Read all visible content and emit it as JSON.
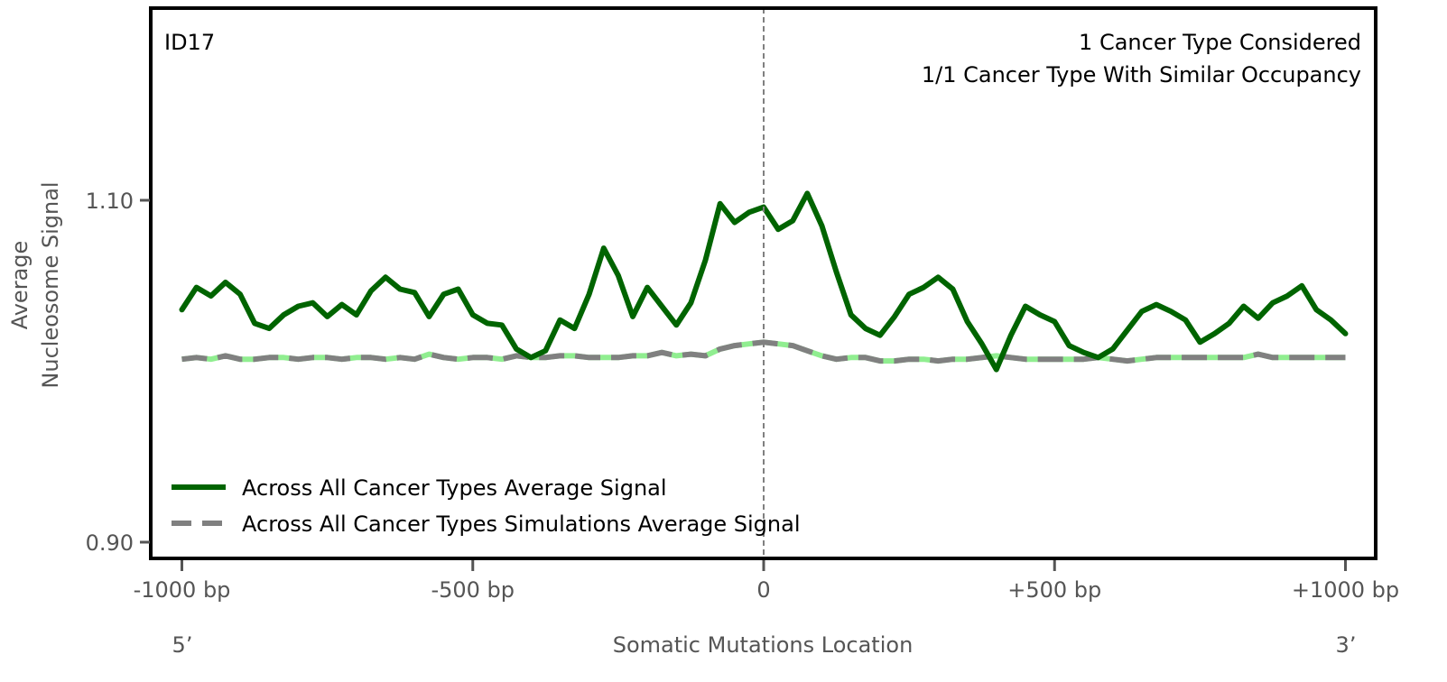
{
  "chart_data": {
    "type": "line",
    "title": "",
    "annotations": {
      "top_left": "ID17",
      "top_right": [
        "1 Cancer Type Considered",
        "1/1 Cancer Type With Similar Occupancy"
      ]
    },
    "xlabel": "Somatic Mutations Location",
    "ylabel_lines": [
      "Average",
      "Nucleosome Signal"
    ],
    "xlim": [
      -1050,
      1050
    ],
    "ylim": [
      0.89,
      1.21
    ],
    "xticks": [
      -1000,
      -500,
      0,
      500,
      1000
    ],
    "xtick_labels": [
      "-1000 bp",
      "-500 bp",
      "0",
      "+500 bp",
      "+1000 bp"
    ],
    "yticks": [
      0.9,
      1.1
    ],
    "ytick_labels": [
      "0.90",
      "1.10"
    ],
    "strand_labels": {
      "left": "5’",
      "right": "3’"
    },
    "center_line_x": 0,
    "grid": false,
    "legend_position": "lower-left",
    "x": [
      -1000,
      -975,
      -950,
      -925,
      -900,
      -875,
      -850,
      -825,
      -800,
      -775,
      -750,
      -725,
      -700,
      -675,
      -650,
      -625,
      -600,
      -575,
      -550,
      -525,
      -500,
      -475,
      -450,
      -425,
      -400,
      -375,
      -350,
      -325,
      -300,
      -275,
      -250,
      -225,
      -200,
      -175,
      -150,
      -125,
      -100,
      -75,
      -50,
      -25,
      0,
      25,
      50,
      75,
      100,
      125,
      150,
      175,
      200,
      225,
      250,
      275,
      300,
      325,
      350,
      375,
      400,
      425,
      450,
      475,
      500,
      525,
      550,
      575,
      600,
      625,
      650,
      675,
      700,
      725,
      750,
      775,
      800,
      825,
      850,
      875,
      900,
      925,
      950,
      975,
      1000
    ],
    "series": [
      {
        "name": "Across All Cancer Types Average Signal",
        "color": "#006400",
        "style": "solid",
        "values": [
          1.036,
          1.049,
          1.044,
          1.052,
          1.045,
          1.028,
          1.025,
          1.033,
          1.038,
          1.04,
          1.032,
          1.039,
          1.033,
          1.047,
          1.055,
          1.048,
          1.046,
          1.032,
          1.045,
          1.048,
          1.033,
          1.028,
          1.027,
          1.013,
          1.008,
          1.012,
          1.03,
          1.025,
          1.045,
          1.072,
          1.056,
          1.032,
          1.049,
          1.038,
          1.027,
          1.04,
          1.065,
          1.098,
          1.087,
          1.093,
          1.096,
          1.083,
          1.088,
          1.104,
          1.085,
          1.058,
          1.033,
          1.025,
          1.021,
          1.032,
          1.045,
          1.049,
          1.055,
          1.048,
          1.029,
          1.016,
          1.001,
          1.021,
          1.038,
          1.033,
          1.029,
          1.015,
          1.011,
          1.008,
          1.013,
          1.024,
          1.035,
          1.039,
          1.035,
          1.03,
          1.017,
          1.022,
          1.028,
          1.038,
          1.031,
          1.04,
          1.044,
          1.05,
          1.036,
          1.03,
          1.022
        ]
      },
      {
        "name": "Across All Cancer Types Simulations Average Signal",
        "color": "#808080",
        "underlay_color": "#90ee90",
        "style": "dashed",
        "values": [
          1.007,
          1.008,
          1.007,
          1.009,
          1.007,
          1.007,
          1.008,
          1.008,
          1.007,
          1.008,
          1.008,
          1.007,
          1.008,
          1.008,
          1.007,
          1.008,
          1.007,
          1.01,
          1.008,
          1.007,
          1.008,
          1.008,
          1.007,
          1.009,
          1.008,
          1.008,
          1.009,
          1.009,
          1.008,
          1.008,
          1.008,
          1.009,
          1.009,
          1.011,
          1.009,
          1.01,
          1.009,
          1.013,
          1.015,
          1.016,
          1.017,
          1.016,
          1.015,
          1.012,
          1.009,
          1.007,
          1.008,
          1.008,
          1.006,
          1.006,
          1.007,
          1.007,
          1.006,
          1.007,
          1.007,
          1.008,
          1.009,
          1.008,
          1.007,
          1.007,
          1.007,
          1.007,
          1.007,
          1.008,
          1.007,
          1.006,
          1.007,
          1.008,
          1.008,
          1.008,
          1.008,
          1.008,
          1.008,
          1.008,
          1.01,
          1.008,
          1.008,
          1.008,
          1.008,
          1.008,
          1.008
        ]
      }
    ]
  }
}
